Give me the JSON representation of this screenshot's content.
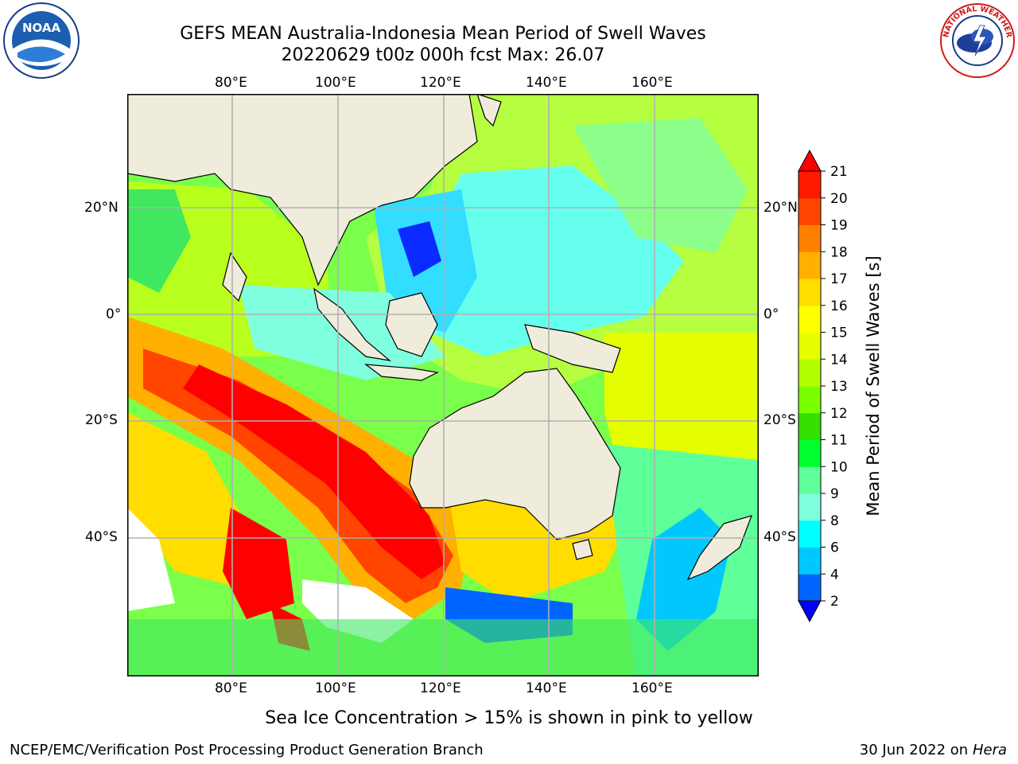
{
  "title": {
    "line1": "GEFS MEAN Australia-Indonesia Mean Period of Swell Waves",
    "line2": "20220629 t00z 000h fcst   Max: 26.07"
  },
  "map": {
    "lon_ticks": [
      "80°E",
      "100°E",
      "120°E",
      "140°E",
      "160°E"
    ],
    "lat_ticks": [
      "20°N",
      "0°",
      "20°S",
      "40°S"
    ],
    "land_color": "#efecdc",
    "grid_color": "#b0b0b0",
    "extent": {
      "lon": [
        60,
        180
      ],
      "lat": [
        -55,
        40
      ]
    }
  },
  "colorbar": {
    "label": "Mean Period of Swell Waves [s]",
    "ticks": [
      "2",
      "4",
      "6",
      "8",
      "9",
      "10",
      "11",
      "12",
      "13",
      "14",
      "15",
      "16",
      "17",
      "18",
      "19",
      "20",
      "21"
    ],
    "colors": [
      "#0000ff",
      "#0064ff",
      "#00c8ff",
      "#00ffff",
      "#7fffdd",
      "#5fff9a",
      "#00ff30",
      "#33e000",
      "#7aff00",
      "#b3ff00",
      "#e5ff00",
      "#ffff00",
      "#ffdd00",
      "#ffb000",
      "#ff8000",
      "#ff4500",
      "#ff1a00",
      "#ff0000"
    ]
  },
  "notes": {
    "sea_ice": "Sea Ice Concentration > 15% is shown in pink to yellow"
  },
  "footer": {
    "left": "NCEP/EMC/Verification Post Processing Product Generation Branch",
    "date": "30 Jun 2022 on",
    "machine": "Hera"
  },
  "logos": {
    "left_text": "NOAA",
    "right_ring_text": "NATIONAL WEATHER SERVICE"
  }
}
